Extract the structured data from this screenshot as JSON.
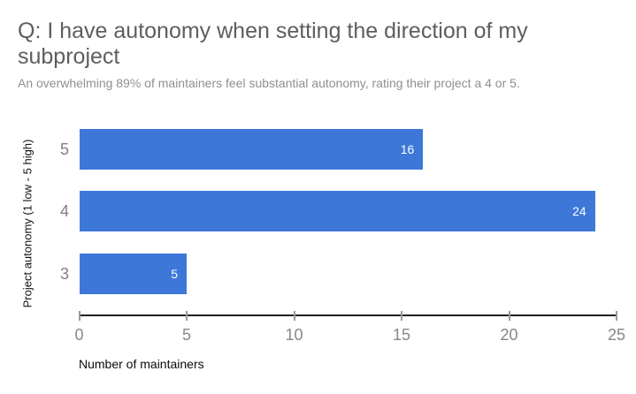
{
  "title": "Q: I have autonomy when setting the direction of my subproject",
  "subtitle": "An overwhelming 89% of maintainers feel substantial autonomy, rating their project a 4 or 5.",
  "chart_data": {
    "type": "bar",
    "orientation": "horizontal",
    "title": "Q: I have autonomy when setting the direction of my subproject",
    "subtitle": "An overwhelming 89% of maintainers feel substantial autonomy, rating their project a 4 or 5.",
    "categories": [
      "5",
      "4",
      "3"
    ],
    "values": [
      16,
      24,
      5
    ],
    "xlabel": "Number of maintainers",
    "ylabel": "Project autonomy (1 low - 5 high)",
    "xlim": [
      0,
      25
    ],
    "xticks": [
      "0",
      "5",
      "10",
      "15",
      "20",
      "25"
    ],
    "grid": false,
    "legend": "none",
    "bar_color": "#3d78d8",
    "value_label_color": "#ffffff"
  },
  "colors": {
    "background": "#ffffff",
    "title_text": "#5c5e60",
    "subtitle_text": "#8f8f8f",
    "category_label": "#7f7f7f",
    "tick_label": "#878787",
    "axis_line": "#212121",
    "axis_title": "#0a0a0a",
    "bar": "#3d78d8",
    "bar_value_label": "#ffffff"
  }
}
